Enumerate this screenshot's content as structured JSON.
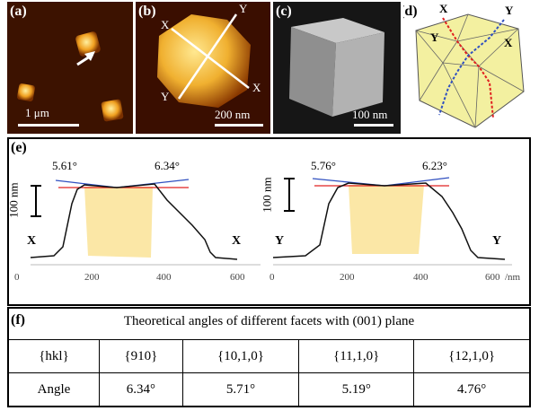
{
  "panels": {
    "a": {
      "label": "(a)",
      "scale": "1 μm"
    },
    "b": {
      "label": "(b)",
      "scale": "200 nm",
      "axis_labels": [
        "X",
        "Y",
        "Y",
        "X"
      ]
    },
    "c": {
      "label": "(c)",
      "scale": "100 nm"
    },
    "d": {
      "label": "(d)",
      "corner_labels": [
        "X",
        "Y",
        "Y",
        "X"
      ]
    }
  },
  "profiles": {
    "label": "(e)",
    "scale_label": "100 nm",
    "x_unit": "/nm",
    "left": {
      "angle_left": "5.61°",
      "angle_right": "6.34°",
      "end_left": "X",
      "end_right": "X",
      "ticks": [
        "0",
        "200",
        "400",
        "600"
      ]
    },
    "right": {
      "angle_left": "5.76°",
      "angle_right": "6.23°",
      "end_left": "Y",
      "end_right": "Y",
      "ticks": [
        "0",
        "200",
        "400",
        "600"
      ]
    }
  },
  "table": {
    "label": "(f)",
    "title": "Theoretical angles of different facets with (001) plane",
    "header": [
      "{hkl}",
      "{910}",
      "{10,1,0}",
      "{11,1,0}",
      "{12,1,0}"
    ],
    "row": [
      "Angle",
      "6.34°",
      "5.71°",
      "5.19°",
      "4.76°"
    ]
  },
  "colors": {
    "afm_bg": "#3a0f00",
    "afm_particle": "#f0a020",
    "sem_bg": "#1a1a1a",
    "facet": "#f3f0a0",
    "trapezoid": "#fbe7a6"
  }
}
